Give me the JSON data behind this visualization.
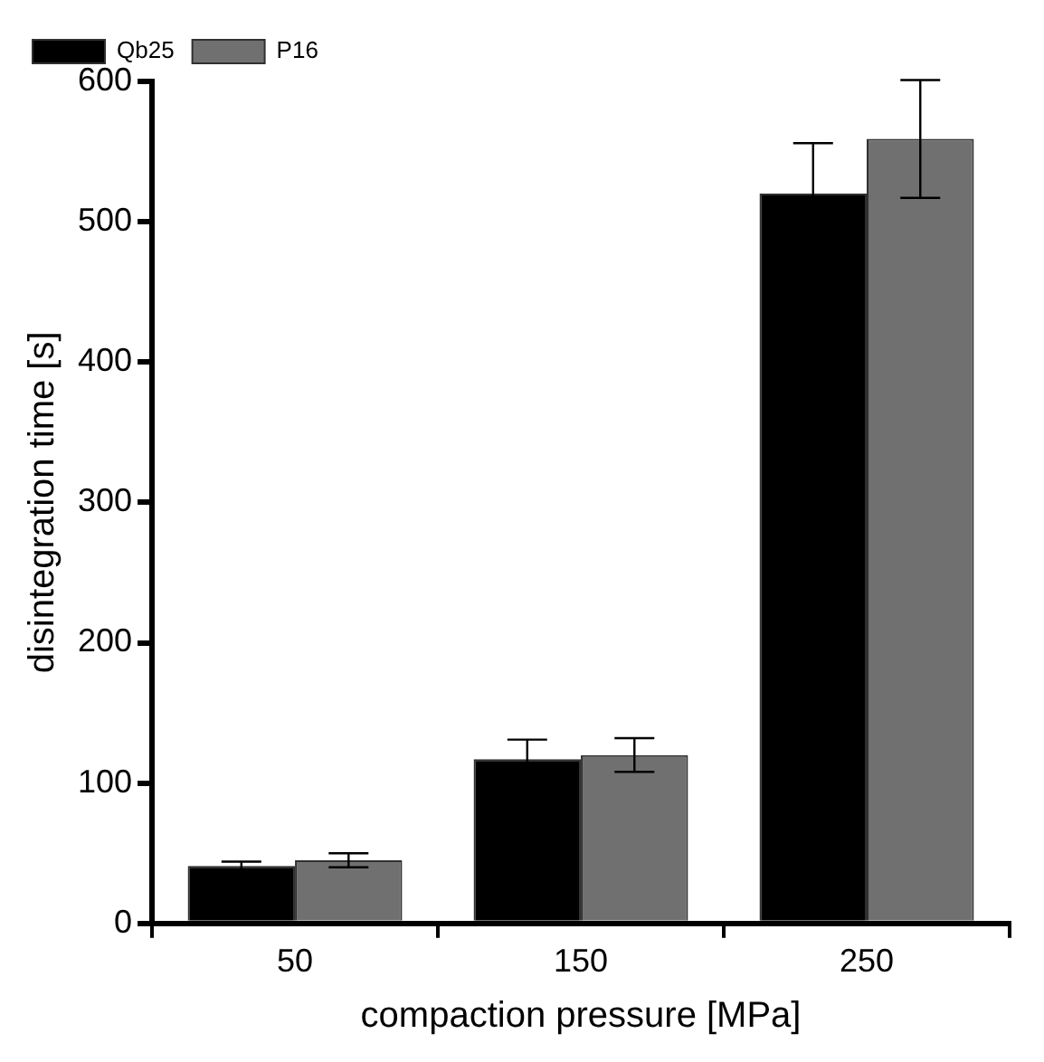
{
  "chart_data": {
    "type": "bar",
    "xlabel": "compaction pressure [MPa]",
    "ylabel": "disintegration time [s]",
    "categories": [
      "50",
      "150",
      "250"
    ],
    "series": [
      {
        "name": "Qb25",
        "color": "#000000",
        "values": [
          41,
          117,
          520
        ],
        "errors": [
          3,
          14,
          36
        ]
      },
      {
        "name": "P16",
        "color": "#707070",
        "values": [
          45,
          120,
          559
        ],
        "errors": [
          5,
          12,
          42
        ]
      }
    ],
    "ylim": [
      0,
      600
    ],
    "yticks": [
      0,
      100,
      200,
      300,
      400,
      500,
      600
    ],
    "grid": false,
    "legend": "top left"
  }
}
